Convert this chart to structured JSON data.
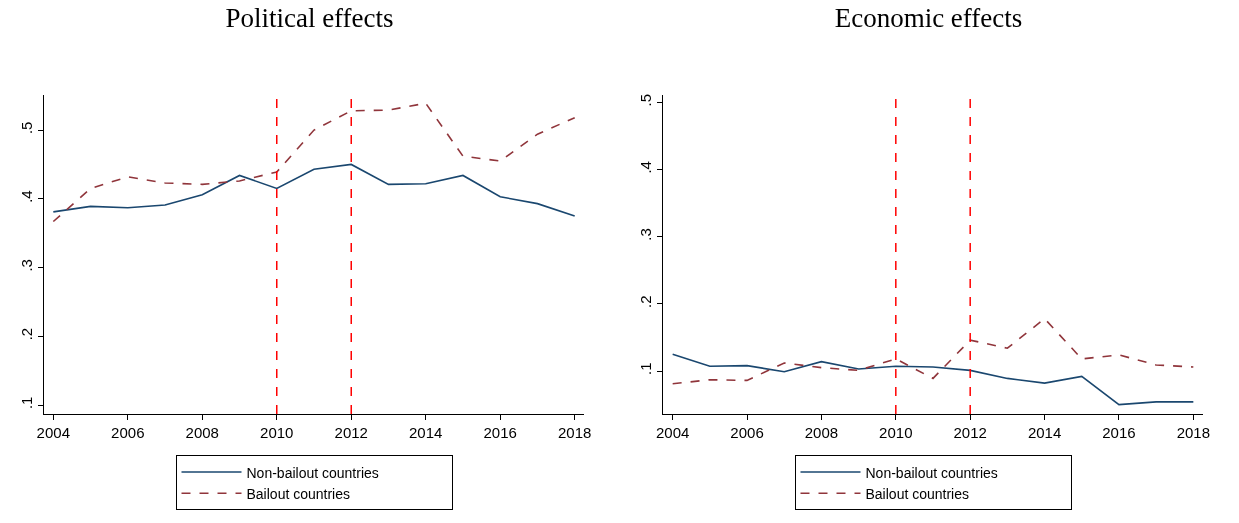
{
  "chart_data": [
    {
      "type": "line",
      "title": "Political effects",
      "x": [
        2004,
        2005,
        2006,
        2007,
        2008,
        2009,
        2010,
        2011,
        2012,
        2013,
        2014,
        2015,
        2016,
        2017,
        2018
      ],
      "series": [
        {
          "name": "Non-bailout countries",
          "color": "#1a476f",
          "line_style": "solid",
          "values": [
            0.381,
            0.389,
            0.387,
            0.391,
            0.406,
            0.434,
            0.415,
            0.443,
            0.45,
            0.421,
            0.422,
            0.434,
            0.403,
            0.393,
            0.375
          ]
        },
        {
          "name": "Bailout countries",
          "color": "#90353b",
          "line_style": "dashed",
          "values": [
            0.367,
            0.415,
            0.432,
            0.423,
            0.421,
            0.426,
            0.439,
            0.5,
            0.528,
            0.529,
            0.539,
            0.462,
            0.455,
            0.494,
            0.518
          ]
        }
      ],
      "xlim": [
        2003.75,
        2018.25
      ],
      "xticks": [
        2004,
        2006,
        2008,
        2010,
        2012,
        2014,
        2016,
        2018
      ],
      "ylim": [
        0.087,
        0.551
      ],
      "yticks": [
        {
          "value": 0.1,
          "label": ".1"
        },
        {
          "value": 0.2,
          "label": ".2"
        },
        {
          "value": 0.3,
          "label": ".3"
        },
        {
          "value": 0.4,
          "label": ".4"
        },
        {
          "value": 0.5,
          "label": ".5"
        }
      ],
      "ref_lines": [
        {
          "axis": "x",
          "value": 2010,
          "color": "#ff0000",
          "line_style": "dashed"
        },
        {
          "axis": "x",
          "value": 2012,
          "color": "#ff0000",
          "line_style": "dashed"
        }
      ],
      "grid": false,
      "legend": "bottom",
      "marker": "none"
    },
    {
      "type": "line",
      "title": "Economic effects",
      "x": [
        2004,
        2005,
        2006,
        2007,
        2008,
        2009,
        2010,
        2011,
        2012,
        2013,
        2014,
        2015,
        2016,
        2017,
        2018
      ],
      "series": [
        {
          "name": "Non-bailout countries",
          "color": "#1a476f",
          "line_style": "solid",
          "values": [
            0.125,
            0.107,
            0.108,
            0.099,
            0.114,
            0.103,
            0.107,
            0.106,
            0.101,
            0.089,
            0.082,
            0.092,
            0.05,
            0.054,
            0.054
          ]
        },
        {
          "name": "Bailout countries",
          "color": "#90353b",
          "line_style": "dashed",
          "values": [
            0.081,
            0.087,
            0.086,
            0.112,
            0.105,
            0.101,
            0.118,
            0.089,
            0.146,
            0.134,
            0.178,
            0.118,
            0.124,
            0.109,
            0.106
          ]
        }
      ],
      "xlim": [
        2003.74,
        2018.26
      ],
      "xticks": [
        2004,
        2006,
        2008,
        2010,
        2012,
        2014,
        2016,
        2018
      ],
      "ylim": [
        0.036,
        0.511
      ],
      "yticks": [
        {
          "value": 0.1,
          "label": ".1"
        },
        {
          "value": 0.2,
          "label": ".2"
        },
        {
          "value": 0.3,
          "label": ".3"
        },
        {
          "value": 0.4,
          "label": ".4"
        },
        {
          "value": 0.5,
          "label": ".5"
        }
      ],
      "ref_lines": [
        {
          "axis": "x",
          "value": 2010,
          "color": "#ff0000",
          "line_style": "dashed"
        },
        {
          "axis": "x",
          "value": 2012,
          "color": "#ff0000",
          "line_style": "dashed"
        }
      ],
      "grid": false,
      "legend": "bottom",
      "marker": "none"
    }
  ]
}
